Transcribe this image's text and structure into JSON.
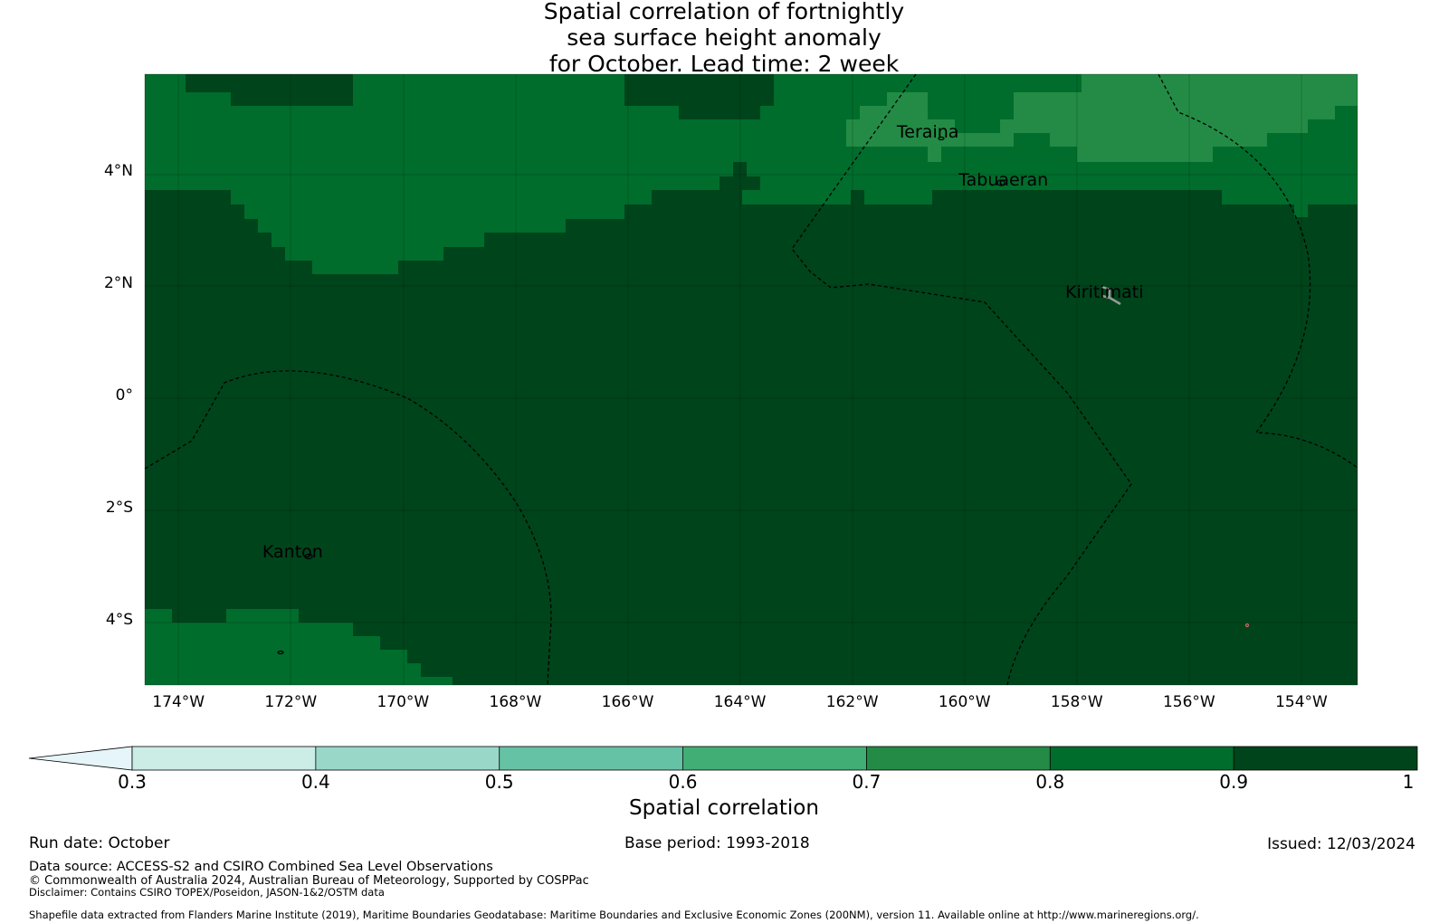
{
  "title": {
    "line1": "Spatial correlation of fortnightly",
    "line2": "sea surface height anomaly",
    "line3": "for October. Lead time: 2 week"
  },
  "map": {
    "lon_range": [
      -174.6,
      -153.0
    ],
    "lat_range": [
      -5.15,
      5.75
    ],
    "lat_ticks": [
      "4°N",
      "2°N",
      "0°",
      "2°S",
      "4°S"
    ],
    "lon_ticks": [
      "174°W",
      "172°W",
      "170°W",
      "168°W",
      "166°W",
      "164°W",
      "162°W",
      "160°W",
      "158°W",
      "156°W",
      "154°W"
    ],
    "places": [
      {
        "name": "Teraina",
        "lon": -160.4,
        "lat": 4.7
      },
      {
        "name": "Tabuaeran",
        "lon": -159.3,
        "lat": 3.85
      },
      {
        "name": "Kiritimati",
        "lon": -157.4,
        "lat": 1.85
      },
      {
        "name": "Kanton",
        "lon": -171.7,
        "lat": -2.8
      }
    ],
    "colors": {
      "band_0_8_0_9": "#006d2c",
      "band_0_9_1": "#00441b",
      "band_0_7_0_8": "#238b45"
    }
  },
  "colorbar": {
    "ticks": [
      "0.3",
      "0.4",
      "0.5",
      "0.6",
      "0.7",
      "0.8",
      "0.9",
      "1"
    ],
    "colors": [
      "#e5f5f9",
      "#ccece6",
      "#99d8c9",
      "#66c2a4",
      "#41ae76",
      "#238b45",
      "#006d2c",
      "#00441b"
    ],
    "label": "Spatial correlation"
  },
  "footer": {
    "run_date": "Run date: October",
    "base_period": "Base period: 1993-2018",
    "issued": "Issued: 12/03/2024",
    "data_source": "Data source: ACCESS-S2 and CSIRO Combined Sea Level Observations",
    "copyright": "© Commonwealth of Australia 2024, Australian Bureau of Meteorology, Supported by COSPPac",
    "disclaimer": "Disclaimer: Contains CSIRO TOPEX/Poseidon, JASON-1&2/OSTM data",
    "shapefile": "Shapefile data extracted from Flanders Marine Institute (2019), Maritime Boundaries Geodatabase: Maritime Boundaries and Exclusive Economic Zones (200NM), version 11. Available online at http://www.marineregions.org/."
  }
}
